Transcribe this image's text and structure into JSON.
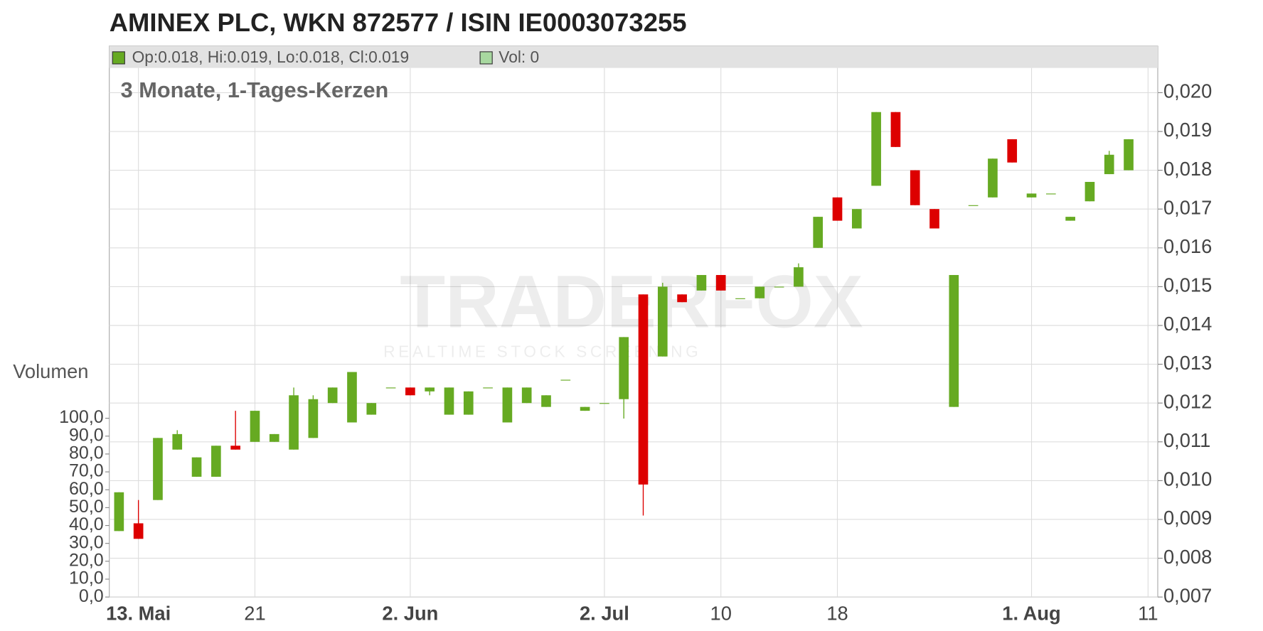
{
  "chart_data": {
    "type": "candlestick",
    "title": "AMINEX PLC, WKN 872577 / ISIN IE0003073255",
    "subtitle": "3 Monate, 1-Tages-Kerzen",
    "legend": [
      "Op:0.018, Hi:0.019, Lo:0.018, Cl:0.019",
      "Vol: 0"
    ],
    "volume_label": "Volumen",
    "watermark": [
      "TRADERFOX",
      "REALTIME STOCK SCREENING"
    ],
    "up_color": "#66aa22",
    "down_color": "#dd0000",
    "volume_color": "#a8d8a0",
    "grid": true,
    "categories": [
      null,
      "13. Mai",
      null,
      null,
      null,
      null,
      null,
      "21",
      null,
      null,
      null,
      null,
      null,
      null,
      null,
      "2. Jun",
      null,
      null,
      null,
      null,
      null,
      null,
      null,
      null,
      null,
      "2. Jul",
      null,
      null,
      null,
      null,
      null,
      "10",
      null,
      null,
      null,
      null,
      null,
      "18",
      null,
      null,
      null,
      null,
      null,
      null,
      null,
      null,
      null,
      "1. Aug",
      null,
      null,
      null,
      null,
      null,
      "11"
    ],
    "open": [
      0.0087,
      0.0089,
      0.0095,
      0.0108,
      0.0101,
      0.0101,
      0.0109,
      0.011,
      0.011,
      0.0108,
      0.0111,
      0.012,
      0.0115,
      0.0117,
      0.0124,
      0.0124,
      0.0123,
      0.0117,
      0.0117,
      0.0124,
      0.0115,
      0.012,
      0.0119,
      0.0126,
      0.0118,
      0.012,
      0.0121,
      0.0148,
      0.0132,
      0.0148,
      0.0149,
      0.0153,
      0.0147,
      0.0147,
      0.015,
      0.015,
      0.016,
      0.0173,
      0.0165,
      0.0176,
      0.0195,
      0.018,
      0.017,
      0.0119,
      0.0171,
      0.0173,
      0.0188,
      0.0173,
      0.0174,
      0.0167,
      0.0172,
      0.0179,
      0.018,
      null
    ],
    "high": [
      0.0097,
      0.0095,
      0.0111,
      0.0113,
      0.0106,
      0.0109,
      0.0118,
      0.0118,
      0.0112,
      0.0124,
      0.0122,
      0.0124,
      0.0128,
      0.012,
      0.0124,
      0.0124,
      0.0124,
      0.0124,
      0.0123,
      0.0124,
      0.0124,
      0.0124,
      0.0122,
      0.0126,
      0.0119,
      0.012,
      0.0137,
      0.0148,
      0.0151,
      0.0148,
      0.0153,
      0.0153,
      0.0147,
      0.015,
      0.015,
      0.0156,
      0.0168,
      0.0173,
      0.017,
      0.0195,
      0.0195,
      0.018,
      0.017,
      0.0153,
      0.0171,
      0.0183,
      0.0188,
      0.0174,
      0.0174,
      0.0168,
      0.0177,
      0.0185,
      0.0188,
      null
    ],
    "low": [
      0.0087,
      0.0085,
      0.0095,
      0.0108,
      0.0101,
      0.0101,
      0.0108,
      0.011,
      0.011,
      0.0108,
      0.0111,
      0.012,
      0.0115,
      0.0117,
      0.0124,
      0.0122,
      0.0122,
      0.0117,
      0.0117,
      0.0124,
      0.0115,
      0.012,
      0.0119,
      0.0126,
      0.0118,
      0.012,
      0.0116,
      0.0091,
      0.0132,
      0.0146,
      0.0149,
      0.0149,
      0.0147,
      0.0147,
      0.015,
      0.015,
      0.016,
      0.0167,
      0.0165,
      0.0176,
      0.0186,
      0.0171,
      0.0165,
      0.0119,
      0.0171,
      0.0173,
      0.0182,
      0.0173,
      0.0174,
      0.0167,
      0.0172,
      0.0179,
      0.018,
      null
    ],
    "close": [
      0.0097,
      0.0085,
      0.0111,
      0.0112,
      0.0106,
      0.0109,
      0.0108,
      0.0118,
      0.0112,
      0.0122,
      0.0121,
      0.0124,
      0.0128,
      0.012,
      0.0124,
      0.0122,
      0.0124,
      0.0124,
      0.0123,
      0.0124,
      0.0124,
      0.0124,
      0.0122,
      0.0126,
      0.0119,
      0.012,
      0.0137,
      0.0099,
      0.015,
      0.0146,
      0.0153,
      0.0149,
      0.0147,
      0.015,
      0.015,
      0.0155,
      0.0168,
      0.0167,
      0.017,
      0.0195,
      0.0186,
      0.0171,
      0.0165,
      0.0153,
      0.0171,
      0.0183,
      0.0182,
      0.0174,
      0.0174,
      0.0168,
      0.0177,
      0.0184,
      0.0188,
      null
    ],
    "ylim": [
      0.007,
      0.0212
    ],
    "yticks": [
      {
        "value": 0.007,
        "label": "0,007"
      },
      {
        "value": 0.008,
        "label": "0,008"
      },
      {
        "value": 0.009,
        "label": "0,009"
      },
      {
        "value": 0.01,
        "label": "0,010"
      },
      {
        "value": 0.011,
        "label": "0,011"
      },
      {
        "value": 0.012,
        "label": "0,012"
      },
      {
        "value": 0.013,
        "label": "0,013"
      },
      {
        "value": 0.014,
        "label": "0,014"
      },
      {
        "value": 0.015,
        "label": "0,015"
      },
      {
        "value": 0.016,
        "label": "0,016"
      },
      {
        "value": 0.017,
        "label": "0,017"
      },
      {
        "value": 0.018,
        "label": "0,018"
      },
      {
        "value": 0.019,
        "label": "0,019"
      },
      {
        "value": 0.02,
        "label": "0,020"
      }
    ],
    "y2lim": [
      0,
      100
    ],
    "y2ticks": [
      {
        "value": 0,
        "label": "0,0"
      },
      {
        "value": 10,
        "label": "10,0"
      },
      {
        "value": 20,
        "label": "20,0"
      },
      {
        "value": 30,
        "label": "30,0"
      },
      {
        "value": 40,
        "label": "40,0"
      },
      {
        "value": 50,
        "label": "50,0"
      },
      {
        "value": 60,
        "label": "60,0"
      },
      {
        "value": 70,
        "label": "70,0"
      },
      {
        "value": 80,
        "label": "80,0"
      },
      {
        "value": 90,
        "label": "90,0"
      },
      {
        "value": 100,
        "label": "100,0"
      }
    ]
  }
}
